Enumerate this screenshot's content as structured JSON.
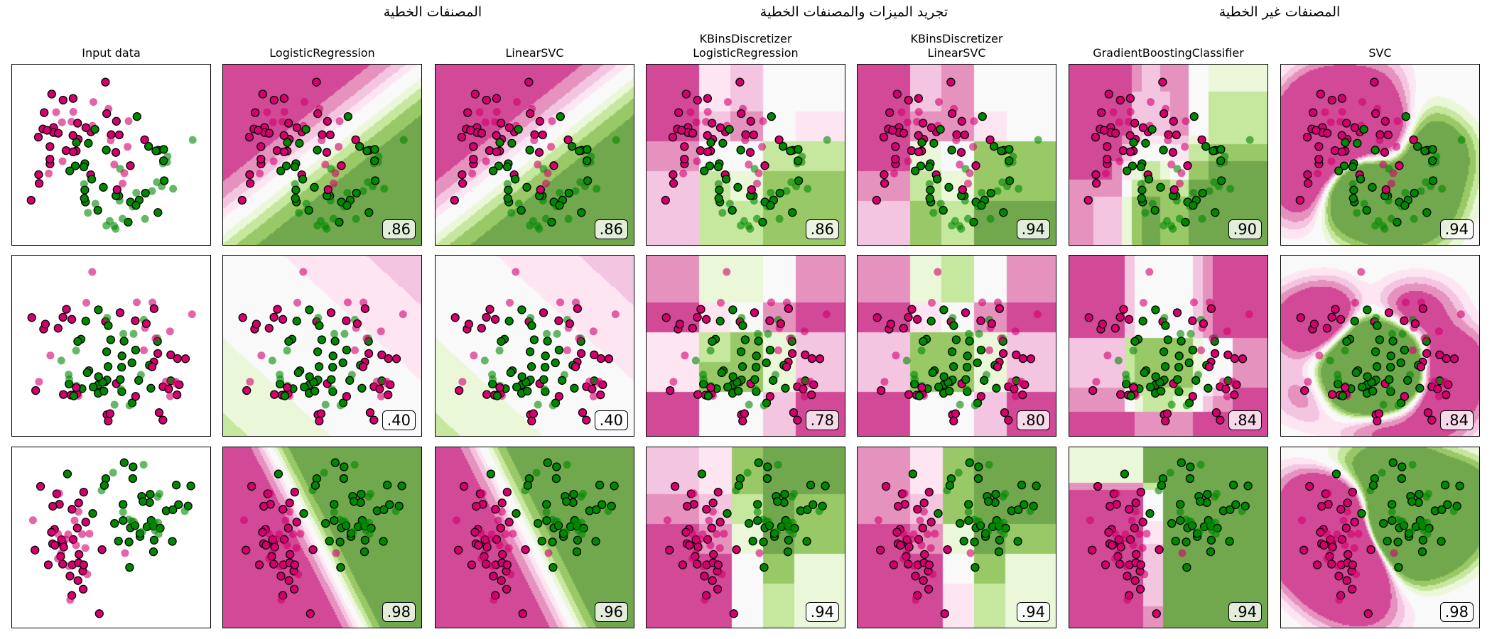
{
  "group_headers": [
    "المصنفات الخطية",
    "تجريد الميزات والمصنفات الخطية",
    "المصنفات غير الخطية"
  ],
  "column_titles": [
    [
      "Input data"
    ],
    [
      "LogisticRegression"
    ],
    [
      "LinearSVC"
    ],
    [
      "KBinsDiscretizer",
      "LogisticRegression"
    ],
    [
      "KBinsDiscretizer",
      "LinearSVC"
    ],
    [
      "GradientBoostingClassifier"
    ],
    [
      "SVC"
    ]
  ],
  "colors": {
    "class0": "#d4006e",
    "class1": "#008800",
    "colormap": "PiYG"
  },
  "chart_data": {
    "type": "scatter",
    "grid": false,
    "rows": [
      {
        "scores": [
          ".86",
          ".86",
          ".86",
          ".94",
          ".90",
          ".94"
        ]
      },
      {
        "scores": [
          ".40",
          ".40",
          ".78",
          ".80",
          ".84",
          ".84"
        ]
      },
      {
        "scores": [
          ".98",
          ".96",
          ".94",
          ".94",
          ".94",
          ".98"
        ]
      }
    ]
  }
}
